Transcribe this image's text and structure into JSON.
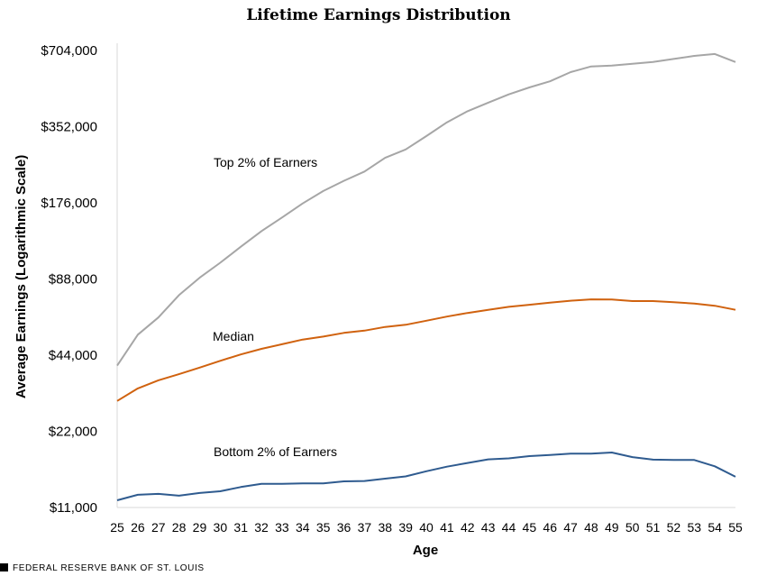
{
  "chart_data": {
    "type": "line",
    "title": "Lifetime Earnings Distribution",
    "xlabel": "Age",
    "ylabel": "Average Earnings  (Logarithmic Scale)",
    "y_scale": "log",
    "ylim": [
      11000,
      704000
    ],
    "yticks": [
      11000,
      22000,
      44000,
      88000,
      176000,
      352000,
      704000
    ],
    "ytick_labels": [
      "$11,000",
      "$22,000",
      "$44,000",
      "$88,000",
      "$176,000",
      "$352,000",
      "$704,000"
    ],
    "x": [
      25,
      26,
      27,
      28,
      29,
      30,
      31,
      32,
      33,
      34,
      35,
      36,
      37,
      38,
      39,
      40,
      41,
      42,
      43,
      44,
      45,
      46,
      47,
      48,
      49,
      50,
      51,
      52,
      53,
      54,
      55
    ],
    "series": [
      {
        "label": "Top 2% of Earners",
        "color": "#a6a6a6",
        "values": [
          40000,
          53000,
          62000,
          76000,
          89000,
          102000,
          118000,
          136000,
          154000,
          175000,
          196000,
          215000,
          234000,
          265000,
          286000,
          323000,
          366000,
          405000,
          438000,
          472000,
          503000,
          532000,
          578000,
          609000,
          614000,
          624000,
          634000,
          652000,
          670000,
          682000,
          634000
        ]
      },
      {
        "label": "Median",
        "color": "#d0620f",
        "values": [
          29000,
          32500,
          35000,
          37000,
          39300,
          41800,
          44300,
          46600,
          48600,
          50700,
          52100,
          53900,
          55000,
          56900,
          58000,
          60200,
          62500,
          64600,
          66400,
          68300,
          69600,
          71000,
          72200,
          73100,
          73000,
          72000,
          72000,
          71200,
          70400,
          69000,
          66500
        ]
      },
      {
        "label": "Bottom 2% of Earners",
        "color": "#2f5b8f",
        "values": [
          11750,
          12350,
          12450,
          12250,
          12550,
          12750,
          13250,
          13650,
          13650,
          13700,
          13700,
          13950,
          14000,
          14300,
          14600,
          15300,
          15950,
          16500,
          17050,
          17200,
          17550,
          17750,
          17950,
          17950,
          18150,
          17400,
          17000,
          16950,
          16950,
          16000,
          14550
        ]
      }
    ],
    "annotations": [
      "Top 2% of Earners",
      "Median",
      "Bottom 2% of Earners"
    ],
    "grid": false,
    "source": "FEDERAL RESERVE BANK OF ST. LOUIS"
  }
}
